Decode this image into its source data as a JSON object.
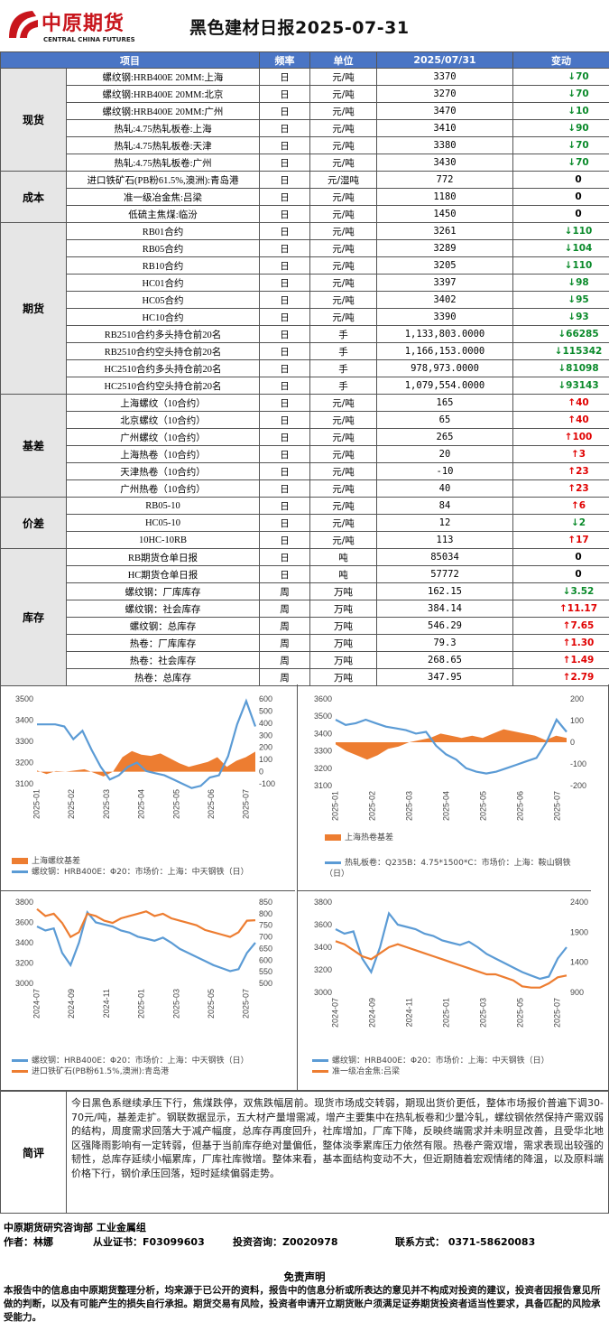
{
  "header": {
    "logo_cn": "中原期货",
    "logo_en": "CENTRAL CHINA FUTURES",
    "title": "黑色建材日报2025-07-31"
  },
  "table": {
    "columns": [
      "项目",
      "频率",
      "单位",
      "2025/07/31",
      "变动"
    ],
    "groups": [
      {
        "category": "现货",
        "rows": [
          {
            "name": "螺纹钢:HRB400E 20MM:上海",
            "freq": "日",
            "unit": "元/吨",
            "value": "3370",
            "change": "70",
            "dir": "down"
          },
          {
            "name": "螺纹钢:HRB400E 20MM:北京",
            "freq": "日",
            "unit": "元/吨",
            "value": "3270",
            "change": "70",
            "dir": "down"
          },
          {
            "name": "螺纹钢:HRB400E 20MM:广州",
            "freq": "日",
            "unit": "元/吨",
            "value": "3470",
            "change": "10",
            "dir": "down"
          },
          {
            "name": "热轧:4.75热轧板卷:上海",
            "freq": "日",
            "unit": "元/吨",
            "value": "3410",
            "change": "90",
            "dir": "down"
          },
          {
            "name": "热轧:4.75热轧板卷:天津",
            "freq": "日",
            "unit": "元/吨",
            "value": "3380",
            "change": "70",
            "dir": "down"
          },
          {
            "name": "热轧:4.75热轧板卷:广州",
            "freq": "日",
            "unit": "元/吨",
            "value": "3430",
            "change": "70",
            "dir": "down"
          }
        ]
      },
      {
        "category": "成本",
        "rows": [
          {
            "name": "进口铁矿石(PB粉61.5%,澳洲):青岛港",
            "freq": "日",
            "unit": "元/湿吨",
            "value": "772",
            "change": "0",
            "dir": "zero"
          },
          {
            "name": "准一级冶金焦:吕梁",
            "freq": "日",
            "unit": "元/吨",
            "value": "1180",
            "change": "0",
            "dir": "zero"
          },
          {
            "name": "低硫主焦煤:临汾",
            "freq": "日",
            "unit": "元/吨",
            "value": "1450",
            "change": "0",
            "dir": "zero"
          }
        ]
      },
      {
        "category": "期货",
        "rows": [
          {
            "name": "RB01合约",
            "freq": "日",
            "unit": "元/吨",
            "value": "3261",
            "change": "110",
            "dir": "down"
          },
          {
            "name": "RB05合约",
            "freq": "日",
            "unit": "元/吨",
            "value": "3289",
            "change": "104",
            "dir": "down"
          },
          {
            "name": "RB10合约",
            "freq": "日",
            "unit": "元/吨",
            "value": "3205",
            "change": "110",
            "dir": "down"
          },
          {
            "name": "HC01合约",
            "freq": "日",
            "unit": "元/吨",
            "value": "3397",
            "change": "98",
            "dir": "down"
          },
          {
            "name": "HC05合约",
            "freq": "日",
            "unit": "元/吨",
            "value": "3402",
            "change": "95",
            "dir": "down"
          },
          {
            "name": "HC10合约",
            "freq": "日",
            "unit": "元/吨",
            "value": "3390",
            "change": "93",
            "dir": "down"
          },
          {
            "name": "RB2510合约多头持仓前20名",
            "freq": "日",
            "unit": "手",
            "value": "1,133,803.0000",
            "change": "66285",
            "dir": "down"
          },
          {
            "name": "RB2510合约空头持仓前20名",
            "freq": "日",
            "unit": "手",
            "value": "1,166,153.0000",
            "change": "115342",
            "dir": "down"
          },
          {
            "name": "HC2510合约多头持仓前20名",
            "freq": "日",
            "unit": "手",
            "value": "978,973.0000",
            "change": "81098",
            "dir": "down"
          },
          {
            "name": "HC2510合约空头持仓前20名",
            "freq": "日",
            "unit": "手",
            "value": "1,079,554.0000",
            "change": "93143",
            "dir": "down"
          }
        ]
      },
      {
        "category": "基差",
        "rows": [
          {
            "name": "上海螺纹（10合约）",
            "freq": "日",
            "unit": "元/吨",
            "value": "165",
            "change": "40",
            "dir": "up"
          },
          {
            "name": "北京螺纹（10合约）",
            "freq": "日",
            "unit": "元/吨",
            "value": "65",
            "change": "40",
            "dir": "up"
          },
          {
            "name": "广州螺纹（10合约）",
            "freq": "日",
            "unit": "元/吨",
            "value": "265",
            "change": "100",
            "dir": "up"
          },
          {
            "name": "上海热卷（10合约）",
            "freq": "日",
            "unit": "元/吨",
            "value": "20",
            "change": "3",
            "dir": "up"
          },
          {
            "name": "天津热卷（10合约）",
            "freq": "日",
            "unit": "元/吨",
            "value": "-10",
            "change": "23",
            "dir": "up"
          },
          {
            "name": "广州热卷（10合约）",
            "freq": "日",
            "unit": "元/吨",
            "value": "40",
            "change": "23",
            "dir": "up"
          }
        ]
      },
      {
        "category": "价差",
        "rows": [
          {
            "name": "RB05-10",
            "freq": "日",
            "unit": "元/吨",
            "value": "84",
            "change": "6",
            "dir": "up"
          },
          {
            "name": "HC05-10",
            "freq": "日",
            "unit": "元/吨",
            "value": "12",
            "change": "2",
            "dir": "down"
          },
          {
            "name": "10HC-10RB",
            "freq": "日",
            "unit": "元/吨",
            "value": "113",
            "change": "17",
            "dir": "up"
          }
        ]
      },
      {
        "category": "库存",
        "rows": [
          {
            "name": "RB期货仓单日报",
            "freq": "日",
            "unit": "吨",
            "value": "85034",
            "change": "0",
            "dir": "zero"
          },
          {
            "name": "HC期货仓单日报",
            "freq": "日",
            "unit": "吨",
            "value": "57772",
            "change": "0",
            "dir": "zero"
          },
          {
            "name": "螺纹钢：厂库库存",
            "freq": "周",
            "unit": "万吨",
            "value": "162.15",
            "change": "3.52",
            "dir": "down"
          },
          {
            "name": "螺纹钢：社会库存",
            "freq": "周",
            "unit": "万吨",
            "value": "384.14",
            "change": "11.17",
            "dir": "up"
          },
          {
            "name": "螺纹钢：总库存",
            "freq": "周",
            "unit": "万吨",
            "value": "546.29",
            "change": "7.65",
            "dir": "up"
          },
          {
            "name": "热卷：厂库库存",
            "freq": "周",
            "unit": "万吨",
            "value": "79.3",
            "change": "1.30",
            "dir": "up"
          },
          {
            "name": "热卷：社会库存",
            "freq": "周",
            "unit": "万吨",
            "value": "268.65",
            "change": "1.49",
            "dir": "up"
          },
          {
            "name": "热卷：总库存",
            "freq": "周",
            "unit": "万吨",
            "value": "347.95",
            "change": "2.79",
            "dir": "up"
          }
        ]
      }
    ]
  },
  "colors": {
    "header_blue": "#4a75c5",
    "up": "#e00000",
    "down": "#0a8a2a",
    "orange": "#ed7d31",
    "blue": "#5b9bd5"
  },
  "chart_data": [
    {
      "type": "line",
      "x_ticks": [
        "2025-01",
        "2025-02",
        "2025-03",
        "2025-04",
        "2025-05",
        "2025-06",
        "2025-07"
      ],
      "ylim": [
        3100,
        3500
      ],
      "yticks": [
        3100,
        3200,
        3300,
        3400,
        3500
      ],
      "y2lim": [
        -100,
        600
      ],
      "y2ticks": [
        -100,
        0,
        100,
        200,
        300,
        400,
        500,
        600
      ],
      "series": [
        {
          "name": "上海螺纹基差",
          "kind": "area",
          "axis": "right",
          "values": [
            10,
            -20,
            5,
            0,
            10,
            20,
            -10,
            -40,
            0,
            120,
            170,
            140,
            130,
            150,
            110,
            70,
            40,
            60,
            80,
            120,
            40,
            90,
            120,
            165
          ]
        },
        {
          "name": "螺纹钢：HRB400E：Φ20：市场价：上海：中天钢铁（日）",
          "kind": "line",
          "axis": "left",
          "values": [
            3380,
            3380,
            3380,
            3370,
            3310,
            3350,
            3260,
            3180,
            3120,
            3140,
            3180,
            3200,
            3160,
            3150,
            3140,
            3120,
            3100,
            3080,
            3090,
            3130,
            3140,
            3230,
            3380,
            3490,
            3370
          ]
        }
      ]
    },
    {
      "type": "line",
      "x_ticks": [
        "2025-01",
        "2025-02",
        "2025-03",
        "2025-04",
        "2025-05",
        "2025-06",
        "2025-07"
      ],
      "ylim": [
        3100,
        3600
      ],
      "yticks": [
        3100,
        3200,
        3300,
        3400,
        3500,
        3600
      ],
      "y2lim": [
        -200,
        200
      ],
      "y2ticks": [
        -200,
        -100,
        0,
        100,
        200
      ],
      "series": [
        {
          "name": "上海热卷基差",
          "kind": "area",
          "axis": "right",
          "values": [
            -10,
            -40,
            -60,
            -80,
            -60,
            -30,
            -20,
            0,
            10,
            20,
            40,
            30,
            20,
            30,
            20,
            40,
            60,
            50,
            40,
            30,
            10,
            30,
            20
          ]
        },
        {
          "name": "热轧板卷：Q235B：4.75*1500*C：市场价：上海：鞍山钢铁（日）",
          "kind": "line",
          "axis": "left",
          "values": [
            3480,
            3450,
            3460,
            3480,
            3460,
            3440,
            3430,
            3420,
            3400,
            3410,
            3330,
            3280,
            3250,
            3200,
            3180,
            3170,
            3180,
            3200,
            3220,
            3240,
            3260,
            3350,
            3480,
            3410
          ]
        }
      ]
    },
    {
      "type": "line",
      "x_ticks": [
        "2024-07",
        "2024-09",
        "2024-11",
        "2025-01",
        "2025-03",
        "2025-05",
        "2025-07"
      ],
      "ylim": [
        3000,
        3800
      ],
      "yticks": [
        3000,
        3200,
        3400,
        3600,
        3800
      ],
      "y2lim": [
        500,
        850
      ],
      "y2ticks": [
        500,
        550,
        600,
        650,
        700,
        750,
        800,
        850
      ],
      "series": [
        {
          "name": "螺纹钢：HRB400E：Φ20：市场价：上海：中天钢铁（日）",
          "kind": "line",
          "axis": "left",
          "values": [
            3560,
            3520,
            3540,
            3300,
            3180,
            3400,
            3700,
            3600,
            3580,
            3560,
            3520,
            3500,
            3460,
            3440,
            3420,
            3450,
            3400,
            3340,
            3300,
            3260,
            3220,
            3180,
            3150,
            3120,
            3140,
            3300,
            3400
          ]
        },
        {
          "name": "进口铁矿石(PB粉61.5%,澳洲):青岛港",
          "kind": "line",
          "axis": "right",
          "values": [
            820,
            790,
            800,
            760,
            700,
            720,
            800,
            790,
            770,
            760,
            780,
            790,
            800,
            810,
            790,
            800,
            780,
            770,
            760,
            750,
            730,
            720,
            710,
            700,
            720,
            770,
            772
          ]
        }
      ]
    },
    {
      "type": "line",
      "x_ticks": [
        "2024-07",
        "2024-09",
        "2024-11",
        "2025-01",
        "2025-03",
        "2025-05",
        "2025-07"
      ],
      "ylim": [
        3000,
        3800
      ],
      "yticks": [
        3000,
        3200,
        3400,
        3600,
        3800
      ],
      "y2lim": [
        900,
        2400
      ],
      "y2ticks": [
        900,
        1400,
        1900,
        2400
      ],
      "series": [
        {
          "name": "螺纹钢：HRB400E：Φ20：市场价：上海：中天钢铁（日）",
          "kind": "line",
          "axis": "left",
          "values": [
            3560,
            3520,
            3540,
            3300,
            3180,
            3400,
            3700,
            3600,
            3580,
            3560,
            3520,
            3500,
            3460,
            3440,
            3420,
            3450,
            3400,
            3340,
            3300,
            3260,
            3220,
            3180,
            3150,
            3120,
            3140,
            3300,
            3400
          ]
        },
        {
          "name": "准一级冶金焦:吕梁",
          "kind": "line",
          "axis": "right",
          "values": [
            1750,
            1700,
            1600,
            1500,
            1450,
            1550,
            1650,
            1700,
            1650,
            1600,
            1550,
            1500,
            1450,
            1400,
            1350,
            1300,
            1250,
            1200,
            1200,
            1150,
            1100,
            1000,
            980,
            980,
            1050,
            1150,
            1180
          ]
        }
      ]
    }
  ],
  "comment": {
    "label": "简评",
    "text": "今日黑色系继续承压下行，焦煤跌停，双焦跌幅居前。现货市场成交转弱，期现出货价更低，整体市场报价普遍下调30-70元/吨，基差走扩。钢联数据显示，五大材产量增需减，增产主要集中在热轧板卷和少量冷轧，螺纹钢依然保持产需双弱的结构，周度需求回落大于减产幅度，总库存再度回升，社库增加，厂库下降，反映终端需求并未明显改善，且受华北地区强降雨影响有一定转弱，但基于当前库存绝对量偏低，整体淡季累库压力依然有限。热卷产需双增，需求表现出较强的韧性，总库存延续小幅累库，厂库社库微增。整体来看，基本面结构变动不大，但近期随着宏观情绪的降温，以及原料端价格下行，钢价承压回落，短时延续偏弱走势。"
  },
  "footer": {
    "dept": "中原期货研究咨询部   工业金属组",
    "author": "作者：林娜",
    "license": "从业证书：F03099603",
    "advisor": "投资咨询：Z0020978",
    "contact": "联系方式： 0371-58620083"
  },
  "disclaimer": {
    "title": "免责声明",
    "text": "本报告中的信息由中原期货整理分析，均来源于已公开的资料，报告中的信息分析或所表达的意见并不构成对投资的建议，投资者因报告意见所做的判断，以及有可能产生的损失自行承担。期货交易有风险，投资者申请开立期货账户须满足证券期货投资者适当性要求，具备匹配的风险承受能力。"
  }
}
